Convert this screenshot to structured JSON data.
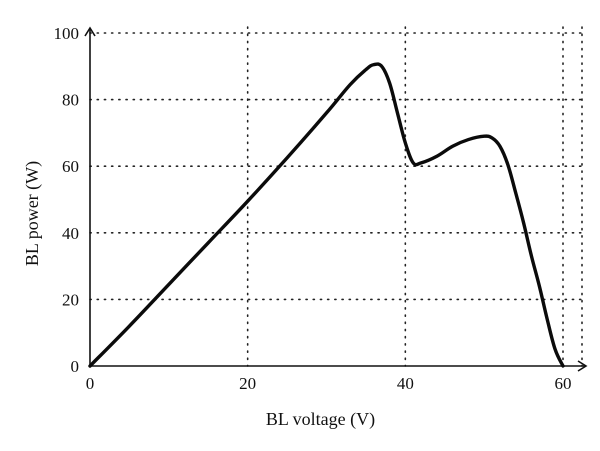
{
  "chart_data": {
    "type": "line",
    "xlabel": "BL voltage (V)",
    "ylabel": "BL power (W)",
    "xlim": [
      0,
      60
    ],
    "ylim": [
      0,
      100
    ],
    "x_ticks": [
      0,
      20,
      40,
      60
    ],
    "y_ticks": [
      0,
      20,
      40,
      60,
      80,
      100
    ],
    "grid": true,
    "series": [
      {
        "x": [
          0,
          5,
          10,
          15,
          20,
          25,
          30,
          33,
          35,
          36,
          37,
          38,
          39,
          40,
          41,
          42,
          44,
          46,
          48,
          50,
          51,
          52,
          53,
          54,
          55,
          56,
          57,
          58,
          59,
          60
        ],
        "y": [
          0,
          12,
          24.5,
          37,
          49.5,
          62.5,
          76,
          84.5,
          89,
          90.5,
          90,
          85,
          76,
          67,
          61,
          61,
          63,
          66,
          68,
          69,
          68.5,
          66,
          60.5,
          52,
          43,
          33,
          24,
          14,
          5,
          0
        ]
      }
    ]
  }
}
